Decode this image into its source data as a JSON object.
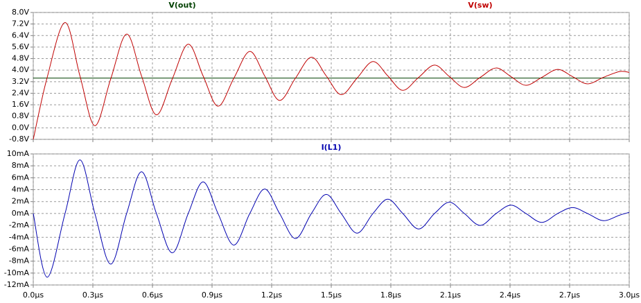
{
  "chart_data": [
    {
      "type": "line",
      "x": [
        0,
        0.07,
        0.16,
        0.235,
        0.31,
        0.39,
        0.47,
        0.545,
        0.62,
        0.7,
        0.78,
        0.855,
        0.93,
        1.01,
        1.09,
        1.165,
        1.24,
        1.32,
        1.4,
        1.475,
        1.55,
        1.63,
        1.71,
        1.785,
        1.86,
        1.94,
        2.02,
        2.095,
        2.17,
        2.25,
        2.33,
        2.405,
        2.48,
        2.56,
        2.64,
        2.715,
        2.79,
        2.87,
        2.95,
        3.0
      ],
      "series": [
        {
          "name": "V(out)",
          "color": "#004000",
          "values": [
            3.45,
            3.45,
            3.45,
            3.45,
            3.45,
            3.45,
            3.45,
            3.45,
            3.45,
            3.45,
            3.45,
            3.45,
            3.45,
            3.45,
            3.45,
            3.45,
            3.45,
            3.45,
            3.45,
            3.45,
            3.45,
            3.45,
            3.45,
            3.45,
            3.45,
            3.45,
            3.45,
            3.45,
            3.45,
            3.45,
            3.45,
            3.45,
            3.45,
            3.45,
            3.45,
            3.45,
            3.45,
            3.45,
            3.45,
            3.45
          ]
        },
        {
          "name": "V(sw)",
          "color": "#c00000",
          "values": [
            -0.8,
            3.5,
            7.3,
            3.6,
            0.15,
            3.4,
            6.5,
            3.6,
            0.9,
            3.4,
            5.8,
            3.6,
            1.5,
            3.45,
            5.3,
            3.6,
            1.9,
            3.45,
            4.9,
            3.6,
            2.3,
            3.45,
            4.6,
            3.6,
            2.6,
            3.5,
            4.35,
            3.55,
            2.8,
            3.5,
            4.15,
            3.55,
            2.95,
            3.5,
            4.05,
            3.55,
            3.05,
            3.5,
            3.9,
            3.85
          ]
        }
      ],
      "xlim": [
        0,
        3.0
      ],
      "xticks": [
        0,
        0.3,
        0.6,
        0.9,
        1.2,
        1.5,
        1.8,
        2.1,
        2.4,
        2.7,
        3.0
      ],
      "ylim": [
        -0.8,
        8.0
      ],
      "yticks": [
        {
          "value": -0.8,
          "label": "-0.8V"
        },
        {
          "value": 0,
          "label": "0.0V"
        },
        {
          "value": 0.8,
          "label": "0.8V"
        },
        {
          "value": 1.6,
          "label": "1.6V"
        },
        {
          "value": 2.4,
          "label": "2.4V"
        },
        {
          "value": 3.2,
          "label": "3.2V"
        },
        {
          "value": 4.0,
          "label": "4.0V"
        },
        {
          "value": 4.8,
          "label": "4.8V"
        },
        {
          "value": 5.6,
          "label": "5.6V"
        },
        {
          "value": 6.4,
          "label": "6.4V"
        },
        {
          "value": 7.2,
          "label": "7.2V"
        },
        {
          "value": 8.0,
          "label": "8.0V"
        }
      ],
      "grid": true
    },
    {
      "type": "line",
      "x": [
        0,
        0.07,
        0.16,
        0.235,
        0.31,
        0.39,
        0.47,
        0.545,
        0.62,
        0.7,
        0.78,
        0.855,
        0.93,
        1.01,
        1.09,
        1.165,
        1.24,
        1.32,
        1.4,
        1.475,
        1.55,
        1.63,
        1.71,
        1.785,
        1.86,
        1.94,
        2.02,
        2.095,
        2.17,
        2.25,
        2.33,
        2.405,
        2.48,
        2.56,
        2.64,
        2.715,
        2.79,
        2.87,
        2.95,
        3.0
      ],
      "series": [
        {
          "name": "I(L1)",
          "color": "#0000b0",
          "values": [
            0,
            -10.7,
            0,
            9,
            0,
            -8.5,
            0,
            7,
            0,
            -6.6,
            0,
            5.3,
            0,
            -5.3,
            0,
            4.1,
            0,
            -4.2,
            0,
            3.2,
            0,
            -3.3,
            0,
            2.4,
            0,
            -2.6,
            0,
            1.9,
            0,
            -2.0,
            0,
            1.4,
            0,
            -1.5,
            0,
            1.0,
            0,
            -1.2,
            -0.3,
            0.2
          ]
        }
      ],
      "xlim": [
        0,
        3.0
      ],
      "xticks": [
        {
          "value": 0,
          "label": "0.0µs"
        },
        {
          "value": 0.3,
          "label": "0.3µs"
        },
        {
          "value": 0.6,
          "label": "0.6µs"
        },
        {
          "value": 0.9,
          "label": "0.9µs"
        },
        {
          "value": 1.2,
          "label": "1.2µs"
        },
        {
          "value": 1.5,
          "label": "1.5µs"
        },
        {
          "value": 1.8,
          "label": "1.8µs"
        },
        {
          "value": 2.1,
          "label": "2.1µs"
        },
        {
          "value": 2.4,
          "label": "2.4µs"
        },
        {
          "value": 2.7,
          "label": "2.7µs"
        },
        {
          "value": 3.0,
          "label": "3.0µs"
        }
      ],
      "ylim": [
        -12,
        10
      ],
      "yticks": [
        {
          "value": -12,
          "label": "-12mA"
        },
        {
          "value": -10,
          "label": "-10mA"
        },
        {
          "value": -8,
          "label": "-8mA"
        },
        {
          "value": -6,
          "label": "-6mA"
        },
        {
          "value": -4,
          "label": "-4mA"
        },
        {
          "value": -2,
          "label": "-2mA"
        },
        {
          "value": 0,
          "label": "0mA"
        },
        {
          "value": 2,
          "label": "2mA"
        },
        {
          "value": 4,
          "label": "4mA"
        },
        {
          "value": 6,
          "label": "6mA"
        },
        {
          "value": 8,
          "label": "8mA"
        },
        {
          "value": 10,
          "label": "10mA"
        }
      ],
      "grid": true
    }
  ]
}
